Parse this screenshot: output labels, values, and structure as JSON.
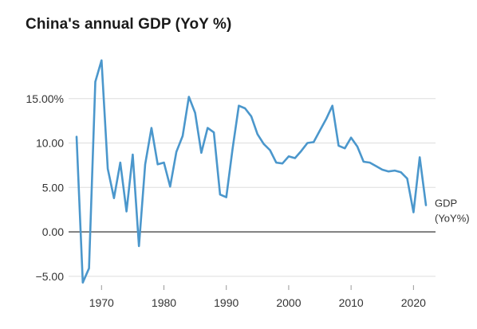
{
  "chart_data": {
    "type": "line",
    "title": "China's annual GDP (YoY %)",
    "xlabel": "",
    "ylabel": "",
    "xlim": [
      1966,
      2022
    ],
    "ylim": [
      -6,
      20
    ],
    "x_ticks": [
      1970,
      1980,
      1990,
      2000,
      2010,
      2020
    ],
    "x_tick_labels": [
      "1970",
      "1980",
      "1990",
      "2000",
      "2010",
      "2020"
    ],
    "y_ticks": [
      -5,
      0,
      5,
      10,
      15
    ],
    "y_tick_labels": [
      "−5.00",
      "0.00",
      "5.00",
      "10.00",
      "15.00%"
    ],
    "grid": "horizontal",
    "zero_line": true,
    "line_color": "#4b97cc",
    "series": [
      {
        "name": "GDP (YoY%)",
        "name_lines": [
          "GDP",
          "(YoY%)"
        ],
        "x": [
          1966,
          1967,
          1968,
          1969,
          1970,
          1971,
          1972,
          1973,
          1974,
          1975,
          1976,
          1977,
          1978,
          1979,
          1980,
          1981,
          1982,
          1983,
          1984,
          1985,
          1986,
          1987,
          1988,
          1989,
          1990,
          1991,
          1992,
          1993,
          1994,
          1995,
          1996,
          1997,
          1998,
          1999,
          2000,
          2001,
          2002,
          2003,
          2004,
          2005,
          2006,
          2007,
          2008,
          2009,
          2010,
          2011,
          2012,
          2013,
          2014,
          2015,
          2016,
          2017,
          2018,
          2019,
          2020,
          2021,
          2022
        ],
        "values": [
          10.7,
          -5.7,
          -4.1,
          16.9,
          19.3,
          7.1,
          3.8,
          7.8,
          2.3,
          8.7,
          -1.6,
          7.6,
          11.7,
          7.6,
          7.8,
          5.1,
          9.0,
          10.8,
          15.2,
          13.4,
          8.9,
          11.7,
          11.2,
          4.2,
          3.9,
          9.3,
          14.2,
          13.9,
          13.0,
          11.0,
          9.9,
          9.2,
          7.8,
          7.7,
          8.5,
          8.3,
          9.1,
          10.0,
          10.1,
          11.4,
          12.7,
          14.2,
          9.7,
          9.4,
          10.6,
          9.6,
          7.9,
          7.8,
          7.4,
          7.0,
          6.8,
          6.9,
          6.7,
          6.0,
          2.2,
          8.4,
          3.0
        ]
      }
    ]
  }
}
